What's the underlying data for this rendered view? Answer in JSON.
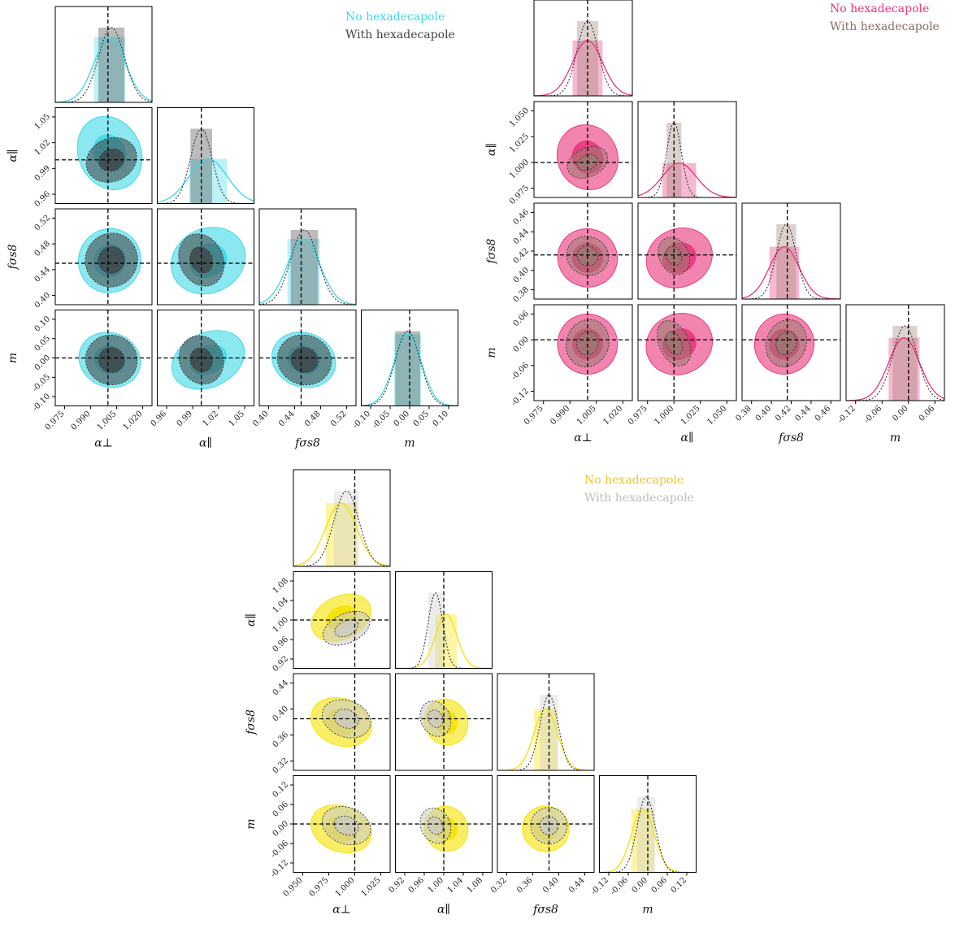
{
  "chart_data": [
    {
      "type": "corner",
      "params": [
        "α⊥",
        "α∥",
        "fσs8",
        "m"
      ],
      "legend": [
        "No hexadecapole",
        "With hexadecapole"
      ],
      "colors": {
        "primary": "#3ed7e6",
        "secondary": "#404040"
      },
      "ticks": [
        [
          "0.975",
          "0.990",
          "1.005",
          "1.020"
        ],
        [
          "0.96",
          "0.99",
          "1.02",
          "1.05"
        ],
        [
          "0.40",
          "0.44",
          "0.48",
          "0.52"
        ],
        [
          "-0.10",
          "-0.05",
          "0.00",
          "0.05",
          "0.10"
        ]
      ],
      "fiducial": [
        1.0,
        1.0,
        0.45,
        0.0
      ],
      "series": [
        {
          "name": "No hexadecapole",
          "mean": [
            1.001,
            1.008,
            0.454,
            -0.005
          ],
          "sigma": [
            0.009,
            0.022,
            0.025,
            0.035
          ]
        },
        {
          "name": "With hexadecapole",
          "mean": [
            1.002,
            1.0,
            0.455,
            -0.005
          ],
          "sigma": [
            0.0075,
            0.0125,
            0.021,
            0.032
          ]
        }
      ]
    },
    {
      "type": "corner",
      "params": [
        "α⊥",
        "α∥",
        "fσs8",
        "m"
      ],
      "legend": [
        "No hexadecapole",
        "With hexadecapole"
      ],
      "colors": {
        "primary": "#e8337a",
        "secondary": "#9a7a70"
      },
      "ticks": [
        [
          "0.975",
          "0.990",
          "1.005",
          "1.020"
        ],
        [
          "0.975",
          "1.000",
          "1.025",
          "1.050"
        ],
        [
          "0.38",
          "0.40",
          "0.42",
          "0.44",
          "0.46"
        ],
        [
          "-0.12",
          "-0.06",
          "0.00",
          "0.06"
        ]
      ],
      "fiducial": [
        1.0,
        1.0,
        0.416,
        0.0
      ],
      "series": [
        {
          "name": "No hexadecapole",
          "mean": [
            1.0,
            1.005,
            0.413,
            -0.01
          ],
          "sigma": [
            0.0085,
            0.016,
            0.015,
            0.035
          ]
        },
        {
          "name": "With hexadecapole",
          "mean": [
            1.0,
            1.0,
            0.415,
            -0.008
          ],
          "sigma": [
            0.006,
            0.007,
            0.01,
            0.028
          ]
        }
      ]
    },
    {
      "type": "corner",
      "params": [
        "α⊥",
        "α∥",
        "fσs8",
        "m"
      ],
      "legend": [
        "No hexadecapole",
        "With hexadecapole"
      ],
      "colors": {
        "primary": "#f5e200",
        "secondary": "#c8c8c8"
      },
      "ticks": [
        [
          "0.950",
          "0.975",
          "1.000",
          "1.025"
        ],
        [
          "0.92",
          "0.96",
          "1.00",
          "1.04",
          "1.08"
        ],
        [
          "0.32",
          "0.36",
          "0.40",
          "0.44"
        ],
        [
          "-0.12",
          "-0.06",
          "0.00",
          "0.06",
          "0.12"
        ]
      ],
      "fiducial": [
        1.0,
        1.0,
        0.385,
        0.0
      ],
      "series": [
        {
          "name": "No hexadecapole",
          "mean": [
            0.987,
            1.005,
            0.38,
            -0.015
          ],
          "sigma": [
            0.015,
            0.022,
            0.018,
            0.035
          ]
        },
        {
          "name": "With hexadecapole",
          "mean": [
            0.992,
            0.983,
            0.385,
            -0.005
          ],
          "sigma": [
            0.012,
            0.015,
            0.014,
            0.028
          ]
        }
      ]
    }
  ]
}
